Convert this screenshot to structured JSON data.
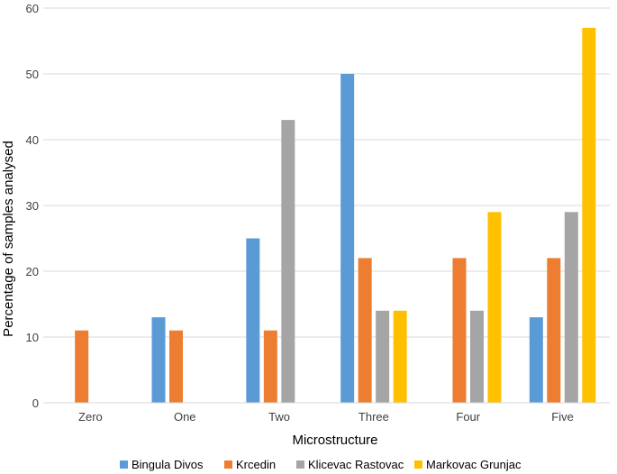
{
  "chart_data": {
    "type": "bar",
    "categories": [
      "Zero",
      "One",
      "Two",
      "Three",
      "Four",
      "Five"
    ],
    "series": [
      {
        "name": "Bingula Divos",
        "color": "#5B9BD5",
        "values": [
          0,
          13,
          25,
          50,
          0,
          13
        ]
      },
      {
        "name": "Krcedin",
        "color": "#ED7D31",
        "values": [
          11,
          11,
          11,
          22,
          22,
          22
        ]
      },
      {
        "name": "Klicevac Rastovac",
        "color": "#A5A5A5",
        "values": [
          0,
          0,
          43,
          14,
          14,
          29
        ]
      },
      {
        "name": "Markovac Grunjac",
        "color": "#FFC000",
        "values": [
          0,
          0,
          0,
          14,
          29,
          57
        ]
      }
    ],
    "title": "",
    "xlabel": "Microstructure",
    "ylabel": "Percentage of samples analysed",
    "ylim": [
      0,
      60
    ],
    "yticks": [
      0,
      10,
      20,
      30,
      40,
      50,
      60
    ],
    "grid": true,
    "legend_position": "bottom"
  }
}
